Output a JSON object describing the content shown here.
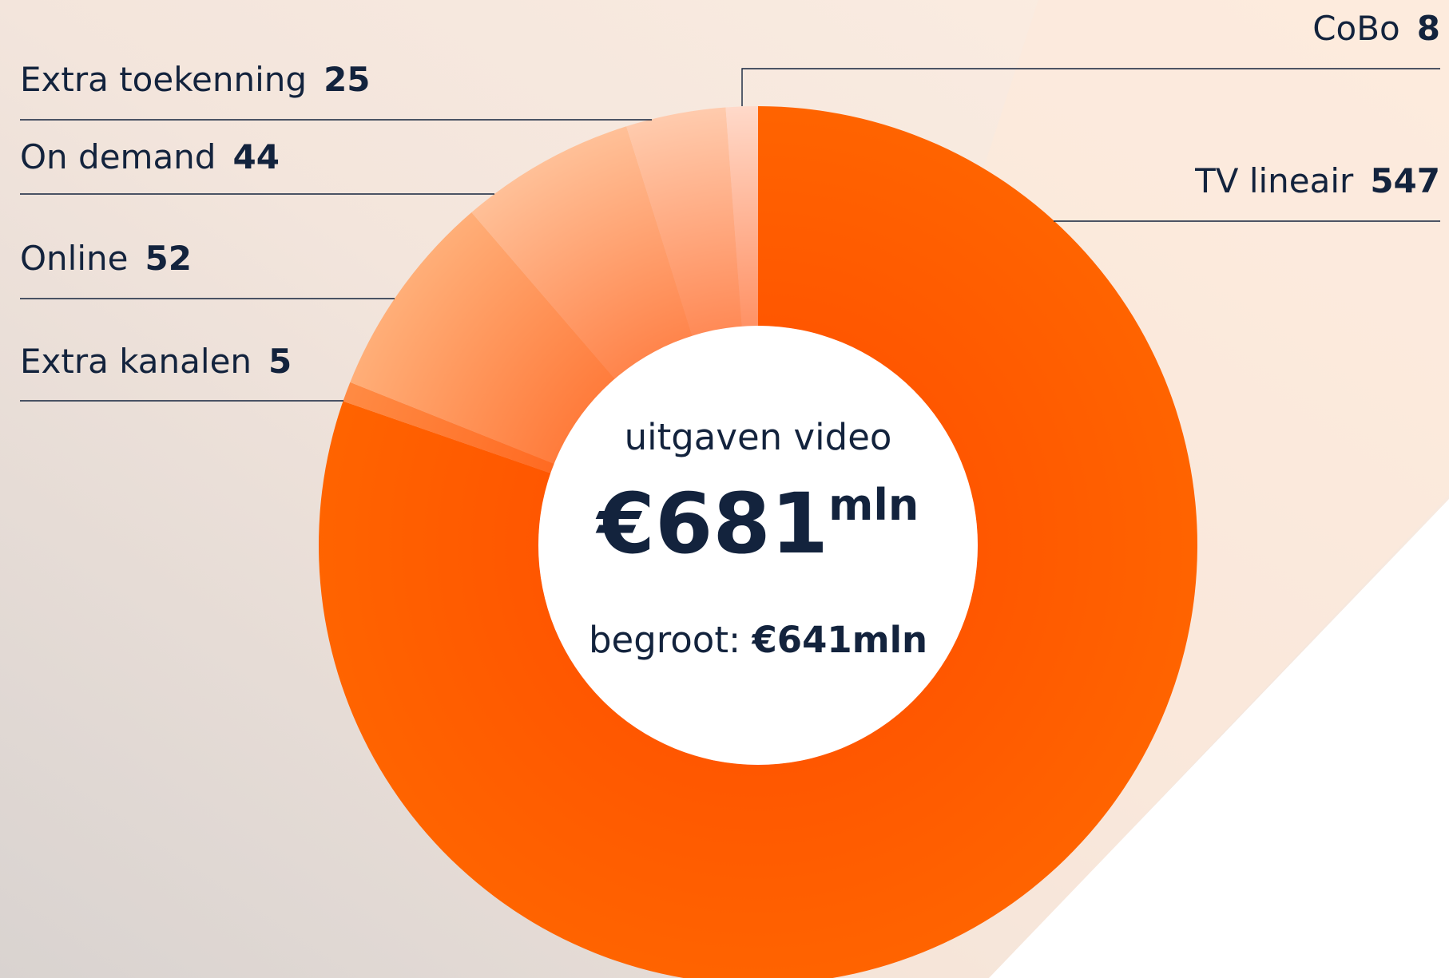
{
  "chart_data": {
    "type": "donut",
    "categories": [
      "TV lineair",
      "Extra kanalen",
      "Online",
      "On demand",
      "Extra toekenning",
      "CoBo"
    ],
    "values": [
      547,
      5,
      52,
      44,
      25,
      8
    ],
    "colors": [
      "#ff6400",
      "#ff8c45",
      "#ffb07a",
      "#ffc29a",
      "#ffcdb0",
      "#ffdccd"
    ],
    "center_label": "uitgaven video",
    "total_label": "€681",
    "total_unit": "mln",
    "budget_label": "begroot:",
    "budget_value": "€641mln"
  }
}
